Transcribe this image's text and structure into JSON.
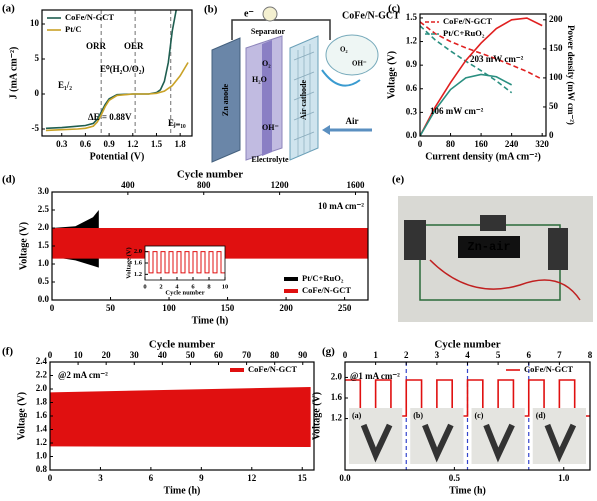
{
  "chart_data": [
    {
      "type": "line",
      "label": "(a)",
      "xlabel": "Potential (V)",
      "ylabel": "J (mA cm⁻²)",
      "xlim": [
        0.05,
        1.95
      ],
      "xticks": [
        0.3,
        0.6,
        0.9,
        1.2,
        1.5,
        1.8
      ],
      "ylim": [
        -6,
        12
      ],
      "yticks": [
        -5,
        0,
        5,
        10
      ],
      "legend": "upper left",
      "vlines": [
        0.8,
        1.23,
        1.68
      ],
      "vline_color": "#888888",
      "series": [
        {
          "name": "CoFe/N-GCT",
          "color": "#1f5e50",
          "x": [
            0.1,
            0.3,
            0.5,
            0.6,
            0.7,
            0.75,
            0.8,
            0.85,
            0.9,
            1.0,
            1.2,
            1.4,
            1.5,
            1.55,
            1.6,
            1.65,
            1.7,
            1.75
          ],
          "values": [
            -4.9,
            -4.8,
            -4.6,
            -4.5,
            -4.2,
            -3.6,
            -2.6,
            -1.5,
            -0.7,
            -0.1,
            0,
            0,
            0.2,
            0.6,
            1.8,
            4.5,
            9,
            12
          ]
        },
        {
          "name": "Pt/C",
          "color": "#c9a227",
          "x": [
            0.1,
            0.3,
            0.5,
            0.6,
            0.7,
            0.75,
            0.8,
            0.85,
            0.9,
            1.0,
            1.2,
            1.4,
            1.5,
            1.6,
            1.7,
            1.8,
            1.9
          ],
          "values": [
            -5.2,
            -5.1,
            -5.0,
            -4.9,
            -4.6,
            -4.0,
            -3.0,
            -1.8,
            -0.9,
            -0.2,
            0,
            0,
            0.1,
            0.4,
            1.2,
            2.6,
            4.5
          ]
        }
      ],
      "annotations": [
        "ORR",
        "OER",
        "E₁/₂",
        "E⁰(H₂O/O₂)",
        "ΔE = 0.88V",
        "Eⱼ₌₁₀"
      ]
    },
    {
      "type": "line",
      "label": "(c)",
      "xlabel": "Current density (mA cm⁻²)",
      "ylabel": "Voltage (V)",
      "y2label": "Power density (mW cm⁻²)",
      "xlim": [
        0,
        330
      ],
      "xticks": [
        0,
        80,
        160,
        240,
        320
      ],
      "ylim": [
        0,
        1.55
      ],
      "yticks": [
        {
          "value": 0,
          "label": "0.0"
        },
        0.3,
        0.6,
        0.9,
        1.2,
        1.5
      ],
      "y2lim": [
        0,
        210
      ],
      "y2ticks": [
        0,
        50,
        100,
        150,
        200
      ],
      "legend": "upper left",
      "series": [
        {
          "name": "CoFe/N-GCT",
          "color": "#e02020",
          "dash": true,
          "x": [
            0,
            40,
            80,
            120,
            160,
            200,
            240,
            280,
            320
          ],
          "values": [
            1.45,
            1.3,
            1.2,
            1.12,
            1.05,
            0.98,
            0.9,
            0.82,
            0.72
          ]
        },
        {
          "name": "Pt/C+RuO₂",
          "color": "#2a8f80",
          "dash": true,
          "x": [
            0,
            40,
            80,
            120,
            160,
            200,
            240
          ],
          "values": [
            1.4,
            1.22,
            1.08,
            0.95,
            0.83,
            0.7,
            0.55
          ]
        },
        {
          "name": "CoFe/N-GCT",
          "color": "#e02020",
          "axis": "y2",
          "x": [
            0,
            40,
            80,
            120,
            160,
            200,
            240,
            280,
            320
          ],
          "values": [
            0,
            50,
            92,
            130,
            160,
            185,
            200,
            203,
            190
          ]
        },
        {
          "name": "Pt/C+RuO₂",
          "color": "#2a8f80",
          "axis": "y2",
          "x": [
            0,
            40,
            80,
            120,
            160,
            200,
            240
          ],
          "values": [
            0,
            45,
            80,
            100,
            106,
            102,
            88
          ]
        }
      ],
      "annotations": [
        "203 mW cm⁻²",
        "106 mW cm⁻²"
      ]
    },
    {
      "type": "band",
      "label": "(d)",
      "xlabel": "Time (h)",
      "ylabel": "Voltage (V)",
      "x2label": "Cycle number",
      "xlim": [
        0,
        270
      ],
      "xticks": [
        0,
        50,
        100,
        150,
        200,
        250
      ],
      "x2lim": [
        0,
        1666
      ],
      "x2ticks": [
        400,
        800,
        1200,
        1600
      ],
      "ylim": [
        0,
        3
      ],
      "yticks": [
        {
          "value": 0,
          "label": "0.0"
        },
        0.5,
        {
          "value": 1,
          "label": "1.0"
        },
        1.5,
        {
          "value": 2,
          "label": "2.0"
        },
        2.5,
        {
          "value": 3,
          "label": "3.0"
        }
      ],
      "legend": "lower right",
      "series": [
        {
          "name": "Pt/C+RuO₂",
          "color": "#000000",
          "x": [
            0,
            20,
            35,
            40
          ],
          "upper": [
            2.0,
            2.05,
            2.3,
            2.5
          ],
          "lower": [
            1.2,
            1.1,
            0.95,
            0.9
          ]
        },
        {
          "name": "CoFe/N-GCT",
          "color": "#e01010",
          "x": [
            0,
            270
          ],
          "upper": [
            2.0,
            2.0
          ],
          "lower": [
            1.15,
            1.15
          ]
        }
      ],
      "annotations": [
        "10 mA cm⁻²"
      ],
      "inset": {
        "type": "line",
        "xlabel": "Cycle number",
        "ylabel": "Voltage (V)",
        "xlim": [
          0,
          10
        ],
        "xticks": [
          0,
          2,
          4,
          6,
          8,
          10
        ],
        "ylim": [
          1.0,
          2.2
        ],
        "yticks": [
          1.2,
          1.6,
          {
            "value": 2,
            "label": "2.0"
          }
        ],
        "series": [
          {
            "color": "#e01010",
            "x": [
              0,
              0.5,
              0.5,
              1,
              1,
              1.5,
              1.5,
              2,
              2,
              2.5,
              2.5,
              3,
              3,
              3.5,
              3.5,
              4,
              4,
              4.5,
              4.5,
              5,
              5,
              5.5,
              5.5,
              6,
              6,
              6.5,
              6.5,
              7,
              7,
              7.5,
              7.5,
              8,
              8,
              8.5,
              8.5,
              9,
              9,
              9.5,
              9.5,
              10
            ],
            "values": [
              2.0,
              2.0,
              1.25,
              1.25,
              2.0,
              2.0,
              1.25,
              1.25,
              2.0,
              2.0,
              1.25,
              1.25,
              2.0,
              2.0,
              1.25,
              1.25,
              2.0,
              2.0,
              1.25,
              1.25,
              2.0,
              2.0,
              1.25,
              1.25,
              2.0,
              2.0,
              1.25,
              1.25,
              2.0,
              2.0,
              1.25,
              1.25,
              2.0,
              2.0,
              1.25,
              1.25,
              2.0,
              2.0,
              1.25,
              1.25
            ]
          }
        ]
      }
    },
    {
      "type": "band",
      "label": "(f)",
      "xlabel": "Time (h)",
      "ylabel": "Voltage (V)",
      "x2label": "Cycle number",
      "xlim": [
        0,
        15.7
      ],
      "xticks": [
        0,
        3,
        6,
        9,
        12,
        15
      ],
      "x2lim": [
        0,
        94
      ],
      "x2ticks": [
        0,
        10,
        20,
        30,
        40,
        50,
        60,
        70,
        80,
        90
      ],
      "ylim": [
        0.8,
        2.4
      ],
      "yticks": [
        0.8,
        {
          "value": 1,
          "label": "1.0"
        },
        1.2,
        1.4,
        1.6,
        1.8,
        {
          "value": 2,
          "label": "2.0"
        },
        2.2,
        2.4
      ],
      "legend": "upper right",
      "series": [
        {
          "name": "CoFe/N-GCT",
          "color": "#e01010",
          "x": [
            0,
            15.5
          ],
          "upper": [
            1.95,
            2.03
          ],
          "lower": [
            1.15,
            1.14
          ]
        }
      ],
      "annotations": [
        "@2 mA cm⁻²"
      ]
    },
    {
      "type": "line",
      "label": "(g)",
      "xlabel": "Time (h)",
      "ylabel": "Voltage (V)",
      "x2label": "Cycle number",
      "xlim": [
        0,
        1.12
      ],
      "xticks": [
        {
          "value": 0,
          "label": "0.0"
        },
        0.5,
        {
          "value": 1,
          "label": "1.0"
        }
      ],
      "x2lim": [
        0,
        8
      ],
      "x2ticks": [
        0,
        1,
        2,
        3,
        4,
        5,
        6,
        7,
        8
      ],
      "ylim": [
        0.2,
        2.3
      ],
      "yticks": [
        1.2,
        1.6,
        {
          "value": 2,
          "label": "2.0"
        }
      ],
      "legend": "upper right",
      "vlines": [
        0.28,
        0.56,
        0.84
      ],
      "vline_color": "#3344cc",
      "series": [
        {
          "name": "CoFe/N-GCT",
          "color": "#e01010",
          "x": [
            0,
            0.07,
            0.07,
            0.14,
            0.14,
            0.21,
            0.21,
            0.28,
            0.28,
            0.35,
            0.35,
            0.42,
            0.42,
            0.49,
            0.49,
            0.56,
            0.56,
            0.63,
            0.63,
            0.7,
            0.7,
            0.77,
            0.77,
            0.84,
            0.84,
            0.91,
            0.91,
            0.98,
            0.98,
            1.05,
            1.05,
            1.12
          ],
          "values": [
            1.95,
            1.95,
            1.25,
            1.25,
            1.95,
            1.95,
            1.25,
            1.25,
            1.95,
            1.95,
            1.25,
            1.25,
            1.95,
            1.95,
            1.25,
            1.25,
            1.95,
            1.95,
            1.25,
            1.25,
            1.95,
            1.95,
            1.25,
            1.25,
            1.95,
            1.95,
            1.25,
            1.25,
            1.95,
            1.95,
            1.25,
            1.25
          ]
        }
      ],
      "annotations": [
        "@1 mA cm⁻²"
      ],
      "photo_labels": [
        "(a)",
        "(b)",
        "(c)",
        "(d)"
      ]
    }
  ],
  "diagram": {
    "label": "(b)",
    "electron": "e⁻",
    "catalyst": "CoFe/N-GCT",
    "anode": "Zn anode",
    "separator": "Separator",
    "electrolyte": "Electrolyte",
    "cathode": "Air cathode",
    "air": "Air",
    "species": [
      "H₂O",
      "O₂",
      "OH⁻",
      "O₂",
      "OH⁻"
    ]
  },
  "photo": {
    "label": "(e)",
    "display": "Zn-air"
  }
}
